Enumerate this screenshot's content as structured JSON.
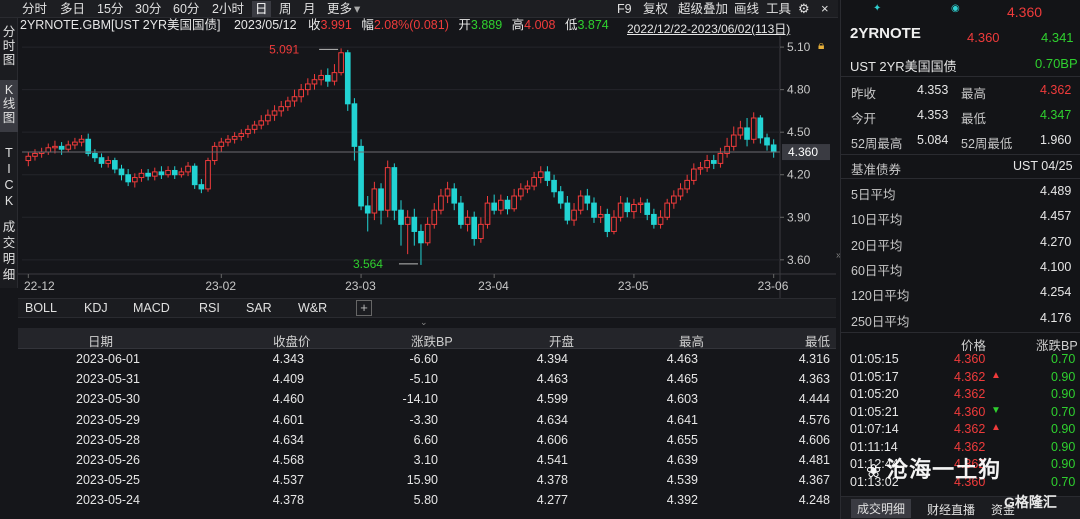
{
  "toolbar": {
    "periods": [
      "分时",
      "多日",
      "15分",
      "30分",
      "60分",
      "2小时",
      "日",
      "周",
      "月",
      "更多"
    ],
    "active_period": "日",
    "right_items": [
      "F9",
      "复权",
      "超级叠加",
      "画线",
      "工具"
    ]
  },
  "quote_line": {
    "symbol": "2YRNOTE.GBM[UST 2YR美国国债]",
    "date": "2023/05/12",
    "close_label": "收",
    "close": "3.991",
    "change_label": "幅",
    "change": "2.08%(0.081)",
    "open_label": "开",
    "open": "3.889",
    "high_label": "高",
    "high": "4.008",
    "low_label": "低",
    "low": "3.874"
  },
  "range_label": "2022/12/22-2023/06/02(113日)",
  "left_tabs": [
    "分时图",
    "K线图",
    "TICK",
    "成交明细"
  ],
  "indicator_tabs": [
    "BOLL",
    "KDJ",
    "MACD",
    "RSI",
    "SAR",
    "W&R"
  ],
  "chart_data": {
    "type": "candlestick",
    "y_ticks": [
      "5.10",
      "4.80",
      "4.50",
      "4.20",
      "3.90",
      "3.60"
    ],
    "ylim": [
      3.5,
      5.15
    ],
    "x_ticks": [
      "22-12",
      "23-02",
      "23-03",
      "23-04",
      "23-05",
      "23-06"
    ],
    "current_price": "4.360",
    "annotations": {
      "high": "5.091",
      "low": "3.564"
    },
    "colors": {
      "up": "#ef3b3b",
      "down": "#22d3d3",
      "bg": "#15161a",
      "grid": "#2a2b30"
    },
    "candles": [
      [
        4.3,
        4.33,
        4.26,
        4.36
      ],
      [
        4.33,
        4.35,
        4.3,
        4.38
      ],
      [
        4.35,
        4.36,
        4.32,
        4.39
      ],
      [
        4.36,
        4.39,
        4.34,
        4.42
      ],
      [
        4.39,
        4.4,
        4.35,
        4.44
      ],
      [
        4.4,
        4.38,
        4.34,
        4.43
      ],
      [
        4.38,
        4.41,
        4.36,
        4.44
      ],
      [
        4.41,
        4.43,
        4.38,
        4.46
      ],
      [
        4.43,
        4.45,
        4.4,
        4.48
      ],
      [
        4.45,
        4.35,
        4.33,
        4.49
      ],
      [
        4.35,
        4.32,
        4.29,
        4.38
      ],
      [
        4.32,
        4.28,
        4.25,
        4.35
      ],
      [
        4.28,
        4.3,
        4.25,
        4.33
      ],
      [
        4.3,
        4.24,
        4.21,
        4.32
      ],
      [
        4.24,
        4.2,
        4.16,
        4.27
      ],
      [
        4.2,
        4.15,
        4.12,
        4.24
      ],
      [
        4.15,
        4.18,
        4.11,
        4.21
      ],
      [
        4.18,
        4.21,
        4.15,
        4.24
      ],
      [
        4.21,
        4.19,
        4.16,
        4.24
      ],
      [
        4.19,
        4.22,
        4.16,
        4.25
      ],
      [
        4.22,
        4.2,
        4.17,
        4.26
      ],
      [
        4.2,
        4.23,
        4.18,
        4.26
      ],
      [
        4.23,
        4.2,
        4.17,
        4.26
      ],
      [
        4.2,
        4.22,
        4.18,
        4.25
      ],
      [
        4.22,
        4.26,
        4.19,
        4.29
      ],
      [
        4.26,
        4.13,
        4.1,
        4.28
      ],
      [
        4.13,
        4.1,
        4.07,
        4.17
      ],
      [
        4.1,
        4.3,
        4.08,
        4.32
      ],
      [
        4.3,
        4.4,
        4.27,
        4.43
      ],
      [
        4.4,
        4.43,
        4.36,
        4.46
      ],
      [
        4.43,
        4.45,
        4.4,
        4.48
      ],
      [
        4.45,
        4.47,
        4.42,
        4.5
      ],
      [
        4.47,
        4.49,
        4.44,
        4.52
      ],
      [
        4.49,
        4.52,
        4.46,
        4.55
      ],
      [
        4.52,
        4.55,
        4.49,
        4.58
      ],
      [
        4.55,
        4.58,
        4.52,
        4.62
      ],
      [
        4.58,
        4.62,
        4.55,
        4.66
      ],
      [
        4.62,
        4.65,
        4.58,
        4.69
      ],
      [
        4.65,
        4.68,
        4.61,
        4.72
      ],
      [
        4.68,
        4.72,
        4.65,
        4.75
      ],
      [
        4.72,
        4.75,
        4.68,
        4.8
      ],
      [
        4.75,
        4.8,
        4.71,
        4.84
      ],
      [
        4.8,
        4.84,
        4.76,
        4.88
      ],
      [
        4.84,
        4.87,
        4.8,
        4.91
      ],
      [
        4.87,
        4.9,
        4.83,
        4.94
      ],
      [
        4.9,
        4.86,
        4.82,
        4.95
      ],
      [
        4.86,
        4.92,
        4.83,
        4.98
      ],
      [
        4.92,
        5.06,
        4.9,
        5.091
      ],
      [
        5.06,
        4.7,
        4.65,
        5.08
      ],
      [
        4.7,
        4.4,
        4.3,
        4.74
      ],
      [
        4.4,
        3.98,
        3.95,
        4.45
      ],
      [
        3.98,
        3.93,
        3.8,
        4.05
      ],
      [
        3.93,
        4.1,
        3.88,
        4.15
      ],
      [
        4.1,
        3.95,
        3.85,
        4.14
      ],
      [
        3.95,
        4.25,
        3.9,
        4.3
      ],
      [
        4.25,
        3.95,
        3.88,
        4.28
      ],
      [
        3.95,
        3.85,
        3.7,
        4.02
      ],
      [
        3.85,
        3.9,
        3.64,
        3.95
      ],
      [
        3.9,
        3.8,
        3.7,
        3.96
      ],
      [
        3.8,
        3.72,
        3.564,
        3.85
      ],
      [
        3.72,
        3.85,
        3.7,
        3.9
      ],
      [
        3.85,
        3.95,
        3.82,
        4.0
      ],
      [
        3.95,
        4.05,
        3.92,
        4.1
      ],
      [
        4.05,
        4.1,
        4.0,
        4.15
      ],
      [
        4.1,
        4.0,
        3.95,
        4.14
      ],
      [
        4.0,
        3.85,
        3.82,
        4.05
      ],
      [
        3.85,
        3.9,
        3.8,
        3.95
      ],
      [
        3.9,
        3.75,
        3.7,
        3.94
      ],
      [
        3.75,
        3.85,
        3.72,
        3.9
      ],
      [
        3.85,
        4.0,
        3.82,
        4.05
      ],
      [
        4.0,
        3.95,
        3.92,
        4.06
      ],
      [
        3.95,
        4.02,
        3.92,
        4.06
      ],
      [
        4.02,
        3.96,
        3.92,
        4.05
      ],
      [
        3.96,
        4.05,
        3.94,
        4.1
      ],
      [
        4.05,
        4.1,
        4.02,
        4.14
      ],
      [
        4.1,
        4.12,
        4.07,
        4.16
      ],
      [
        4.12,
        4.18,
        4.09,
        4.22
      ],
      [
        4.18,
        4.22,
        4.14,
        4.26
      ],
      [
        4.22,
        4.16,
        4.12,
        4.26
      ],
      [
        4.16,
        4.08,
        4.04,
        4.2
      ],
      [
        4.08,
        4.0,
        3.96,
        4.12
      ],
      [
        4.0,
        3.88,
        3.85,
        4.05
      ],
      [
        3.88,
        3.95,
        3.84,
        4.0
      ],
      [
        3.95,
        4.05,
        3.92,
        4.09
      ],
      [
        4.05,
        4.0,
        3.95,
        4.1
      ],
      [
        4.0,
        3.9,
        3.86,
        4.04
      ],
      [
        3.9,
        3.92,
        3.86,
        3.98
      ],
      [
        3.92,
        3.8,
        3.76,
        3.96
      ],
      [
        3.8,
        3.9,
        3.78,
        3.95
      ],
      [
        3.9,
        4.0,
        3.87,
        4.05
      ],
      [
        4.0,
        3.94,
        3.9,
        4.04
      ],
      [
        3.94,
        3.99,
        3.89,
        4.03
      ],
      [
        3.99,
        4.0,
        3.93,
        4.04
      ],
      [
        4.0,
        3.92,
        3.88,
        4.03
      ],
      [
        3.92,
        3.85,
        3.82,
        3.96
      ],
      [
        3.85,
        3.9,
        3.82,
        3.95
      ],
      [
        3.9,
        4.0,
        3.88,
        4.03
      ],
      [
        4.0,
        4.05,
        3.96,
        4.09
      ],
      [
        4.05,
        4.1,
        4.02,
        4.14
      ],
      [
        4.1,
        4.16,
        4.07,
        4.2
      ],
      [
        4.16,
        4.24,
        4.13,
        4.28
      ],
      [
        4.24,
        4.25,
        4.2,
        4.29
      ],
      [
        4.25,
        4.3,
        4.22,
        4.34
      ],
      [
        4.3,
        4.28,
        4.24,
        4.34
      ],
      [
        4.28,
        4.35,
        4.25,
        4.39
      ],
      [
        4.35,
        4.4,
        4.32,
        4.46
      ],
      [
        4.4,
        4.48,
        4.37,
        4.54
      ],
      [
        4.48,
        4.53,
        4.45,
        4.58
      ],
      [
        4.53,
        4.45,
        4.4,
        4.6
      ],
      [
        4.45,
        4.6,
        4.42,
        4.64
      ],
      [
        4.6,
        4.46,
        4.42,
        4.62
      ],
      [
        4.46,
        4.41,
        4.37,
        4.49
      ],
      [
        4.41,
        4.36,
        4.32,
        4.45
      ]
    ]
  },
  "table": {
    "headers": [
      "日期",
      "收盘价",
      "涨跌BP",
      "开盘",
      "最高",
      "最低"
    ],
    "rows": [
      [
        "2023-06-01",
        "4.343",
        "-6.60",
        "4.394",
        "4.463",
        "4.316"
      ],
      [
        "2023-05-31",
        "4.409",
        "-5.10",
        "4.463",
        "4.465",
        "4.363"
      ],
      [
        "2023-05-30",
        "4.460",
        "-14.10",
        "4.599",
        "4.603",
        "4.444"
      ],
      [
        "2023-05-29",
        "4.601",
        "-3.30",
        "4.634",
        "4.641",
        "4.576"
      ],
      [
        "2023-05-28",
        "4.634",
        "6.60",
        "4.606",
        "4.655",
        "4.606"
      ],
      [
        "2023-05-26",
        "4.568",
        "3.10",
        "4.541",
        "4.639",
        "4.481"
      ],
      [
        "2023-05-25",
        "4.537",
        "15.90",
        "4.378",
        "4.539",
        "4.367"
      ],
      [
        "2023-05-24",
        "4.378",
        "5.80",
        "4.277",
        "4.392",
        "4.248"
      ]
    ]
  },
  "right_panel": {
    "header_price": "4.360",
    "name": "2YRNOTE",
    "price": "4.360",
    "price2": "4.341",
    "subname": "UST 2YR美国国债",
    "change_bp": "0.70BP",
    "stats": [
      {
        "l1": "昨收",
        "v1": "4.353",
        "l2": "最高",
        "v2": "4.362"
      },
      {
        "l1": "今开",
        "v1": "4.353",
        "l2": "最低",
        "v2": "4.347"
      },
      {
        "l1": "52周最高",
        "v1": "5.084",
        "l2": "52周最低",
        "v2": "1.960"
      }
    ],
    "benchmark_label": "基准债券",
    "benchmark": "UST 04/25",
    "averages": [
      {
        "label": "5日平均",
        "value": "4.489"
      },
      {
        "label": "10日平均",
        "value": "4.457"
      },
      {
        "label": "20日平均",
        "value": "4.270"
      },
      {
        "label": "60日平均",
        "value": "4.100"
      },
      {
        "label": "120日平均",
        "value": "4.254"
      },
      {
        "label": "250日平均",
        "value": "4.176"
      }
    ],
    "ticks_headers": [
      "价格",
      "涨跌BP"
    ],
    "ticks": [
      {
        "time": "01:05:15",
        "price": "4.360",
        "arrow": "",
        "bp": "0.70"
      },
      {
        "time": "01:05:17",
        "price": "4.362",
        "arrow": "up",
        "bp": "0.90"
      },
      {
        "time": "01:05:20",
        "price": "4.362",
        "arrow": "",
        "bp": "0.90"
      },
      {
        "time": "01:05:21",
        "price": "4.360",
        "arrow": "down",
        "bp": "0.70"
      },
      {
        "time": "01:07:14",
        "price": "4.362",
        "arrow": "up",
        "bp": "0.90"
      },
      {
        "time": "01:11:14",
        "price": "4.362",
        "arrow": "",
        "bp": "0.90"
      },
      {
        "time": "01:12:44",
        "price": "4.362",
        "arrow": "",
        "bp": "0.90"
      },
      {
        "time": "01:13:02",
        "price": "4.360",
        "arrow": "",
        "bp": "0.70"
      }
    ],
    "bottom_tabs": [
      "成交明细",
      "财经直播",
      "资金"
    ]
  },
  "watermark": {
    "text": "沧海一土狗",
    "brand": "格隆汇"
  }
}
